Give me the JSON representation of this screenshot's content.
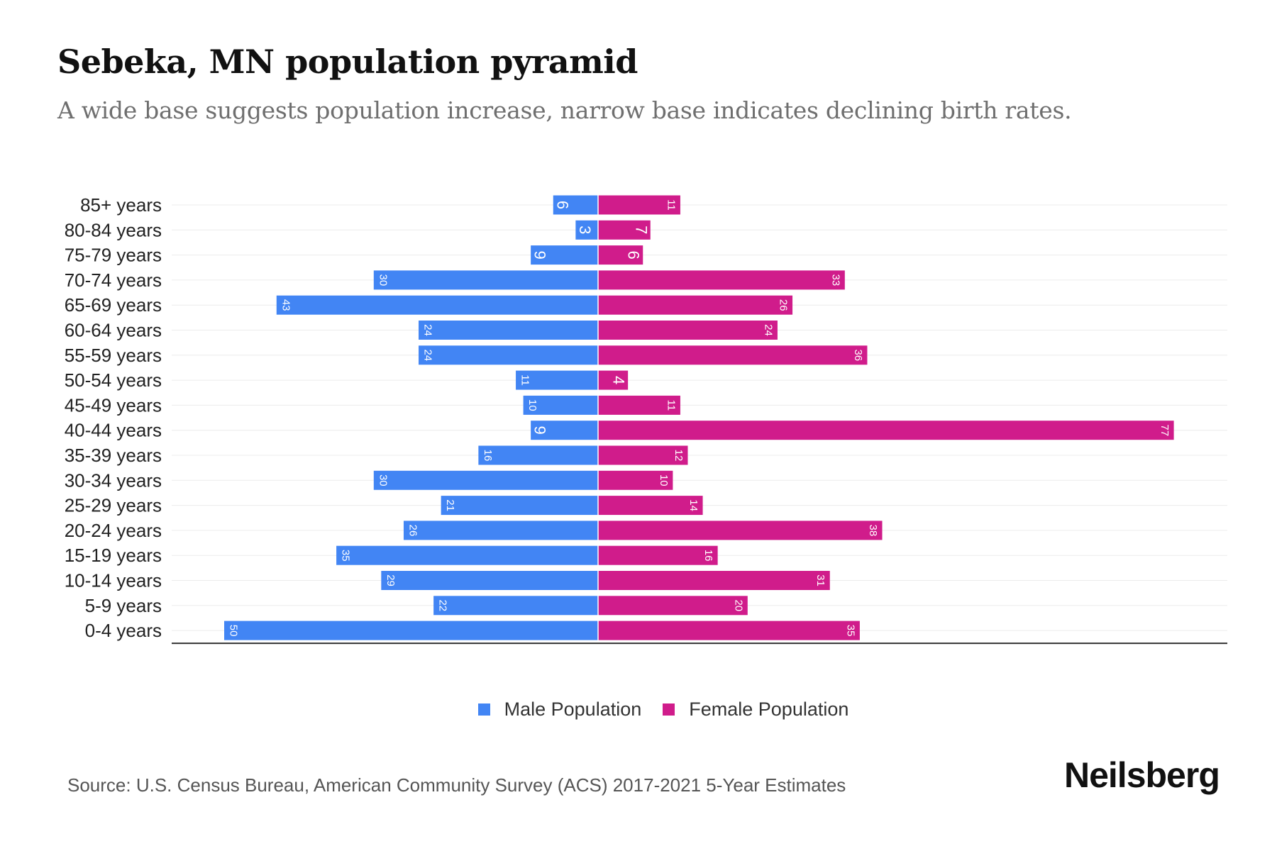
{
  "title": "Sebeka, MN population pyramid",
  "subtitle": "A wide base suggests population increase, narrow base indicates declining birth rates.",
  "source": "Source: U.S. Census Bureau, American Community Survey (ACS) 2017-2021 5-Year Estimates",
  "brand": "Neilsberg",
  "colors": {
    "male": "#4285f4",
    "female": "#d01c8b"
  },
  "chart_data": {
    "type": "bar",
    "orientation": "horizontal-diverging",
    "categories": [
      "85+ years",
      "80-84 years",
      "75-79 years",
      "70-74 years",
      "65-69 years",
      "60-64 years",
      "55-59 years",
      "50-54 years",
      "45-49 years",
      "40-44 years",
      "35-39 years",
      "30-34 years",
      "25-29 years",
      "20-24 years",
      "15-19 years",
      "10-14 years",
      "5-9 years",
      "0-4 years"
    ],
    "series": [
      {
        "name": "Male Population",
        "values": [
          6,
          3,
          9,
          30,
          43,
          24,
          24,
          11,
          10,
          9,
          16,
          30,
          21,
          26,
          35,
          29,
          22,
          50
        ]
      },
      {
        "name": "Female Population",
        "values": [
          11,
          7,
          6,
          33,
          26,
          24,
          36,
          4,
          11,
          77,
          12,
          10,
          14,
          38,
          16,
          31,
          20,
          35
        ]
      }
    ],
    "grid": true,
    "legend_position": "bottom"
  }
}
